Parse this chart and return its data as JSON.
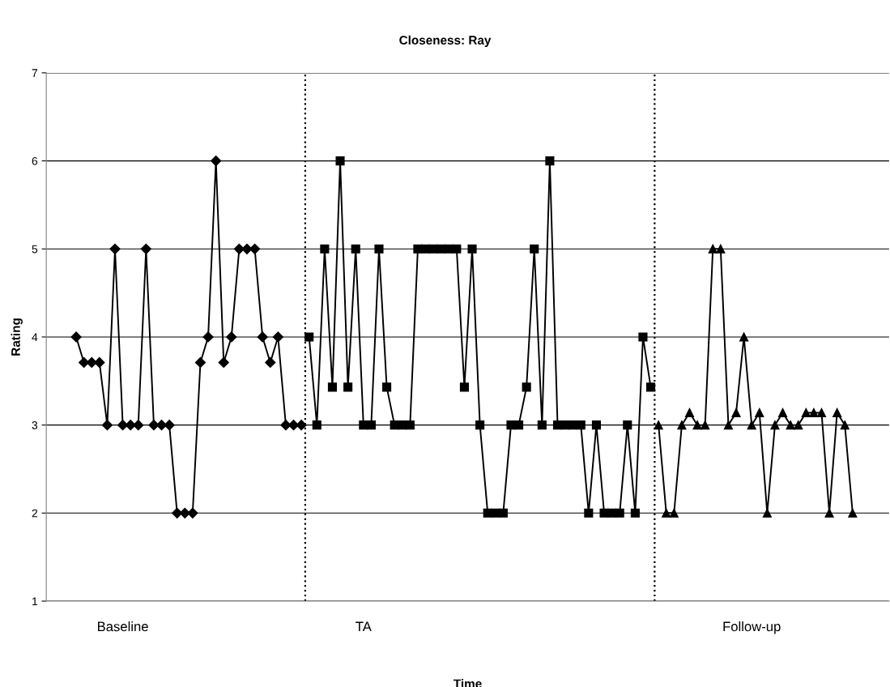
{
  "chart_data": {
    "type": "line",
    "title": "Closeness: Ray",
    "xlabel": "Time",
    "ylabel": "Rating",
    "categories": [
      null,
      null,
      null,
      null,
      null,
      null,
      "Baseline",
      null,
      null,
      null,
      null,
      null,
      null,
      null,
      null,
      null,
      null,
      null,
      null,
      null,
      null,
      null,
      null,
      null,
      null,
      null,
      null,
      null,
      null,
      null,
      null,
      null,
      null,
      null,
      null,
      null,
      null,
      "TA",
      null,
      null,
      null,
      null,
      null,
      null,
      null,
      null,
      null,
      null,
      null,
      null,
      null,
      null,
      null,
      null,
      null,
      null,
      null,
      null,
      null,
      null,
      null,
      null,
      null,
      null,
      null,
      null,
      null,
      null,
      null,
      null,
      null,
      null,
      null,
      null,
      null,
      null,
      null,
      null,
      null,
      null,
      null,
      null,
      null,
      null,
      null,
      null,
      null,
      "Follow-up",
      null,
      null,
      null,
      null,
      null,
      null,
      null,
      null,
      null,
      null,
      null,
      null,
      null
    ],
    "ylim": [
      1,
      7
    ],
    "yticks": [
      1,
      2,
      3,
      4,
      5,
      6,
      7
    ],
    "grid": "y",
    "line_style": "solid",
    "series": [
      {
        "color": "#000000",
        "marker": "diamond",
        "values": [
          4,
          3.71,
          3.71,
          3.71,
          3,
          5,
          3,
          3,
          3,
          5,
          3,
          3,
          3,
          2,
          2,
          2,
          3.71,
          4,
          6,
          3.71,
          4,
          5,
          5,
          5,
          4,
          3.71,
          4,
          3,
          3,
          3,
          null,
          null,
          null,
          null,
          null,
          null,
          null,
          null,
          null,
          null,
          null,
          null,
          null,
          null,
          null,
          null,
          null,
          null,
          null,
          null,
          null,
          null,
          null,
          null,
          null,
          null,
          null,
          null,
          null,
          null,
          null,
          null,
          null,
          null,
          null,
          null,
          null,
          null,
          null,
          null,
          null,
          null,
          null,
          null,
          null,
          null,
          null,
          null,
          null,
          null,
          null,
          null,
          null,
          null,
          null,
          null,
          null,
          null,
          null,
          null,
          null,
          null,
          null,
          null,
          null,
          null,
          null,
          null,
          null,
          null,
          null
        ]
      },
      {
        "color": "#000000",
        "marker": "square",
        "values": [
          null,
          null,
          null,
          null,
          null,
          null,
          null,
          null,
          null,
          null,
          null,
          null,
          null,
          null,
          null,
          null,
          null,
          null,
          null,
          null,
          null,
          null,
          null,
          null,
          null,
          null,
          null,
          null,
          null,
          null,
          4,
          3,
          5,
          3.43,
          6,
          3.43,
          5,
          3,
          3,
          5,
          3.43,
          3,
          3,
          3,
          5,
          5,
          5,
          5,
          5,
          5,
          3.43,
          5,
          3,
          2,
          2,
          2,
          3,
          3,
          3.43,
          5,
          3,
          6,
          3,
          3,
          3,
          3,
          2,
          3,
          2,
          2,
          2,
          3,
          2,
          4,
          3.43,
          null,
          null,
          null,
          null,
          null,
          null,
          null,
          null,
          null,
          null,
          null,
          null,
          null,
          null,
          null,
          null,
          null,
          null,
          null,
          null,
          null,
          null,
          null,
          null,
          null,
          null
        ]
      },
      {
        "color": "#000000",
        "marker": "triangle",
        "values": [
          null,
          null,
          null,
          null,
          null,
          null,
          null,
          null,
          null,
          null,
          null,
          null,
          null,
          null,
          null,
          null,
          null,
          null,
          null,
          null,
          null,
          null,
          null,
          null,
          null,
          null,
          null,
          null,
          null,
          null,
          null,
          null,
          null,
          null,
          null,
          null,
          null,
          null,
          null,
          null,
          null,
          null,
          null,
          null,
          null,
          null,
          null,
          null,
          null,
          null,
          null,
          null,
          null,
          null,
          null,
          null,
          null,
          null,
          null,
          null,
          null,
          null,
          null,
          null,
          null,
          null,
          null,
          null,
          null,
          null,
          null,
          null,
          null,
          null,
          null,
          3,
          2,
          2,
          3,
          3.14,
          3,
          3,
          5,
          5,
          3,
          3.14,
          4,
          3,
          3.14,
          2,
          3,
          3.14,
          3,
          3,
          3.14,
          3.14,
          3.14,
          2,
          3.14,
          3,
          2
        ]
      }
    ]
  }
}
